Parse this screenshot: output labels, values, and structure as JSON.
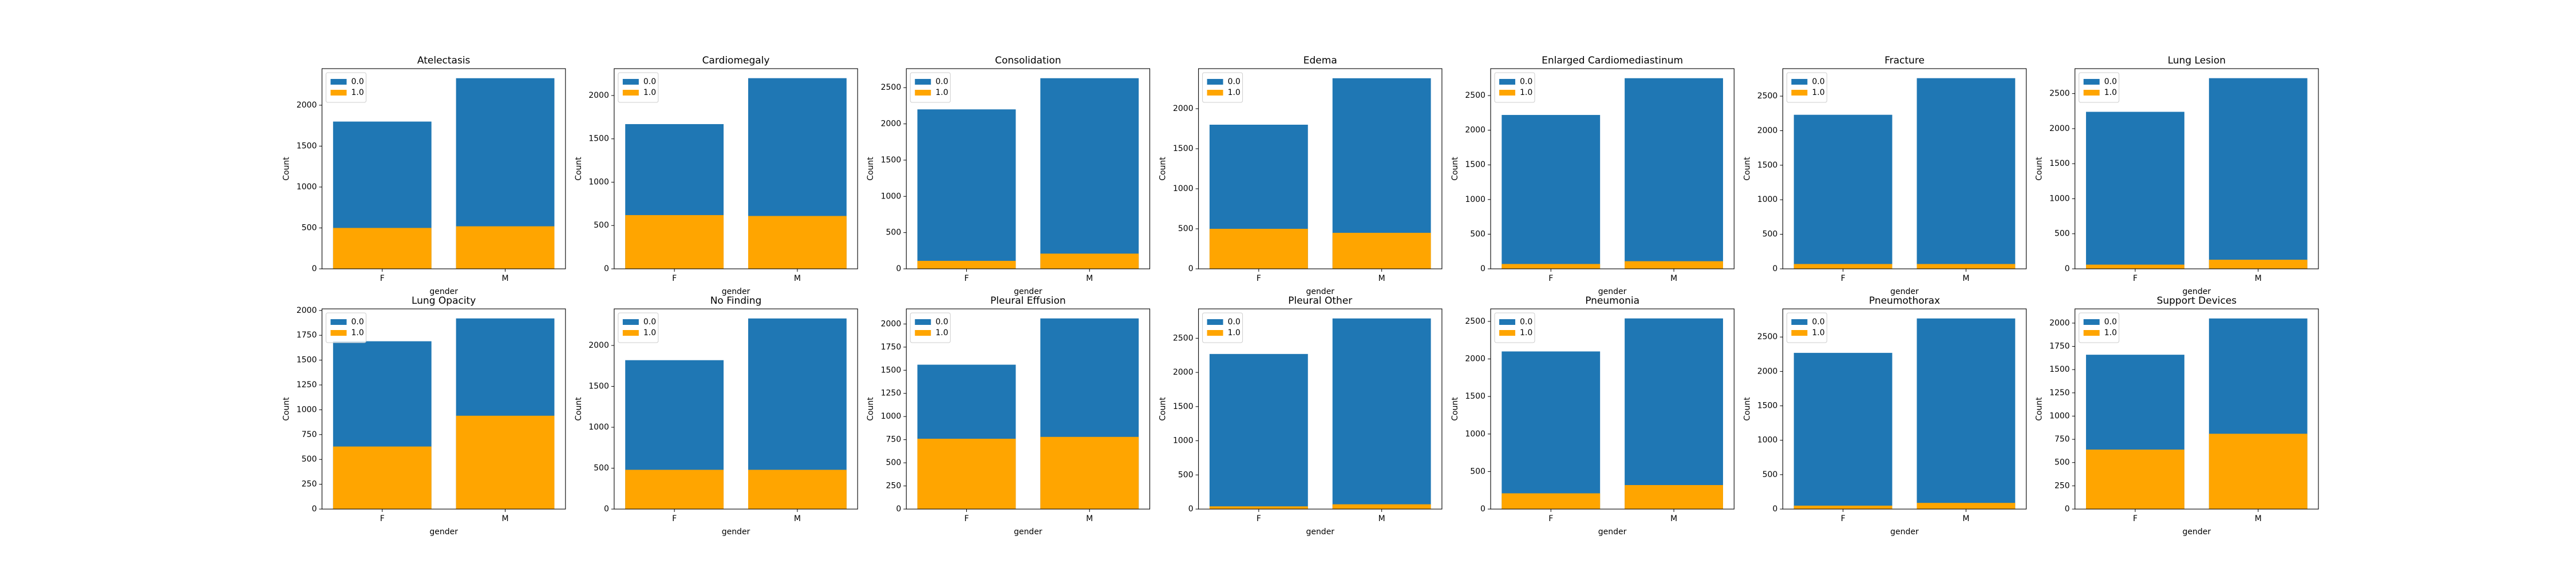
{
  "chart_data": [
    {
      "type": "bar",
      "title": "Atelectasis",
      "categories": [
        "F",
        "M"
      ],
      "x_label": "gender",
      "y_label": "Count",
      "series": [
        {
          "name": "0.0",
          "color": "#1f77b4",
          "values": [
            1800,
            2330
          ]
        },
        {
          "name": "1.0",
          "color": "#ffa500",
          "values": [
            500,
            520
          ]
        }
      ],
      "ylim": [
        0,
        2447
      ],
      "yticks": [
        0,
        500,
        1000,
        1500,
        2000
      ],
      "legend": "upper left"
    },
    {
      "type": "bar",
      "title": "Cardiomegaly",
      "categories": [
        "F",
        "M"
      ],
      "x_label": "gender",
      "y_label": "Count",
      "series": [
        {
          "name": "0.0",
          "color": "#1f77b4",
          "values": [
            1670,
            2200
          ]
        },
        {
          "name": "1.0",
          "color": "#ffa500",
          "values": [
            620,
            610
          ]
        }
      ],
      "ylim": [
        0,
        2310
      ],
      "yticks": [
        0,
        500,
        1000,
        1500,
        2000
      ],
      "legend": "upper left"
    },
    {
      "type": "bar",
      "title": "Consolidation",
      "categories": [
        "F",
        "M"
      ],
      "x_label": "gender",
      "y_label": "Count",
      "series": [
        {
          "name": "0.0",
          "color": "#1f77b4",
          "values": [
            2200,
            2630
          ]
        },
        {
          "name": "1.0",
          "color": "#ffa500",
          "values": [
            110,
            210
          ]
        }
      ],
      "ylim": [
        0,
        2762
      ],
      "yticks": [
        0,
        500,
        1000,
        1500,
        2000,
        2500
      ],
      "legend": "upper left"
    },
    {
      "type": "bar",
      "title": "Edema",
      "categories": [
        "F",
        "M"
      ],
      "x_label": "gender",
      "y_label": "Count",
      "series": [
        {
          "name": "0.0",
          "color": "#1f77b4",
          "values": [
            1800,
            2380
          ]
        },
        {
          "name": "1.0",
          "color": "#ffa500",
          "values": [
            500,
            450
          ]
        }
      ],
      "ylim": [
        0,
        2500
      ],
      "yticks": [
        0,
        500,
        1000,
        1500,
        2000
      ],
      "legend": "upper left"
    },
    {
      "type": "bar",
      "title": "Enlarged Cardiomediastinum",
      "categories": [
        "F",
        "M"
      ],
      "x_label": "gender",
      "y_label": "Count",
      "series": [
        {
          "name": "0.0",
          "color": "#1f77b4",
          "values": [
            2220,
            2750
          ]
        },
        {
          "name": "1.0",
          "color": "#ffa500",
          "values": [
            70,
            110
          ]
        }
      ],
      "ylim": [
        0,
        2888
      ],
      "yticks": [
        0,
        500,
        1000,
        1500,
        2000,
        2500
      ],
      "legend": "upper left"
    },
    {
      "type": "bar",
      "title": "Fracture",
      "categories": [
        "F",
        "M"
      ],
      "x_label": "gender",
      "y_label": "Count",
      "series": [
        {
          "name": "0.0",
          "color": "#1f77b4",
          "values": [
            2230,
            2760
          ]
        },
        {
          "name": "1.0",
          "color": "#ffa500",
          "values": [
            70,
            70
          ]
        }
      ],
      "ylim": [
        0,
        2898
      ],
      "yticks": [
        0,
        500,
        1000,
        1500,
        2000,
        2500
      ],
      "legend": "upper left"
    },
    {
      "type": "bar",
      "title": "Lung Lesion",
      "categories": [
        "F",
        "M"
      ],
      "x_label": "gender",
      "y_label": "Count",
      "series": [
        {
          "name": "0.0",
          "color": "#1f77b4",
          "values": [
            2240,
            2720
          ]
        },
        {
          "name": "1.0",
          "color": "#ffa500",
          "values": [
            60,
            130
          ]
        }
      ],
      "ylim": [
        0,
        2856
      ],
      "yticks": [
        0,
        500,
        1000,
        1500,
        2000,
        2500
      ],
      "legend": "upper left"
    },
    {
      "type": "bar",
      "title": "Lung Opacity",
      "categories": [
        "F",
        "M"
      ],
      "x_label": "gender",
      "y_label": "Count",
      "series": [
        {
          "name": "0.0",
          "color": "#1f77b4",
          "values": [
            1690,
            1920
          ]
        },
        {
          "name": "1.0",
          "color": "#ffa500",
          "values": [
            630,
            940
          ]
        }
      ],
      "ylim": [
        0,
        2016
      ],
      "yticks": [
        0,
        250,
        500,
        750,
        1000,
        1250,
        1500,
        1750,
        2000
      ],
      "legend": "upper left"
    },
    {
      "type": "bar",
      "title": "No Finding",
      "categories": [
        "F",
        "M"
      ],
      "x_label": "gender",
      "y_label": "Count",
      "series": [
        {
          "name": "0.0",
          "color": "#1f77b4",
          "values": [
            1820,
            2330
          ]
        },
        {
          "name": "1.0",
          "color": "#ffa500",
          "values": [
            480,
            480
          ]
        }
      ],
      "ylim": [
        0,
        2447
      ],
      "yticks": [
        0,
        500,
        1000,
        1500,
        2000
      ],
      "legend": "upper left"
    },
    {
      "type": "bar",
      "title": "Pleural Effusion",
      "categories": [
        "F",
        "M"
      ],
      "x_label": "gender",
      "y_label": "Count",
      "series": [
        {
          "name": "0.0",
          "color": "#1f77b4",
          "values": [
            1560,
            2060
          ]
        },
        {
          "name": "1.0",
          "color": "#ffa500",
          "values": [
            760,
            780
          ]
        }
      ],
      "ylim": [
        0,
        2163
      ],
      "yticks": [
        0,
        250,
        500,
        750,
        1000,
        1250,
        1500,
        1750,
        2000
      ],
      "legend": "upper left"
    },
    {
      "type": "bar",
      "title": "Pleural Other",
      "categories": [
        "F",
        "M"
      ],
      "x_label": "gender",
      "y_label": "Count",
      "series": [
        {
          "name": "0.0",
          "color": "#1f77b4",
          "values": [
            2270,
            2790
          ]
        },
        {
          "name": "1.0",
          "color": "#ffa500",
          "values": [
            40,
            70
          ]
        }
      ],
      "ylim": [
        0,
        2930
      ],
      "yticks": [
        0,
        500,
        1000,
        1500,
        2000,
        2500
      ],
      "legend": "upper left"
    },
    {
      "type": "bar",
      "title": "Pneumonia",
      "categories": [
        "F",
        "M"
      ],
      "x_label": "gender",
      "y_label": "Count",
      "series": [
        {
          "name": "0.0",
          "color": "#1f77b4",
          "values": [
            2100,
            2540
          ]
        },
        {
          "name": "1.0",
          "color": "#ffa500",
          "values": [
            210,
            320
          ]
        }
      ],
      "ylim": [
        0,
        2667
      ],
      "yticks": [
        0,
        500,
        1000,
        1500,
        2000,
        2500
      ],
      "legend": "upper left"
    },
    {
      "type": "bar",
      "title": "Pneumothorax",
      "categories": [
        "F",
        "M"
      ],
      "x_label": "gender",
      "y_label": "Count",
      "series": [
        {
          "name": "0.0",
          "color": "#1f77b4",
          "values": [
            2270,
            2770
          ]
        },
        {
          "name": "1.0",
          "color": "#ffa500",
          "values": [
            50,
            90
          ]
        }
      ],
      "ylim": [
        0,
        2909
      ],
      "yticks": [
        0,
        500,
        1000,
        1500,
        2000,
        2500
      ],
      "legend": "upper left"
    },
    {
      "type": "bar",
      "title": "Support Devices",
      "categories": [
        "F",
        "M"
      ],
      "x_label": "gender",
      "y_label": "Count",
      "series": [
        {
          "name": "0.0",
          "color": "#1f77b4",
          "values": [
            1660,
            2050
          ]
        },
        {
          "name": "1.0",
          "color": "#ffa500",
          "values": [
            640,
            810
          ]
        }
      ],
      "ylim": [
        0,
        2153
      ],
      "yticks": [
        0,
        250,
        500,
        750,
        1000,
        1250,
        1500,
        1750,
        2000
      ],
      "legend": "upper left"
    }
  ]
}
